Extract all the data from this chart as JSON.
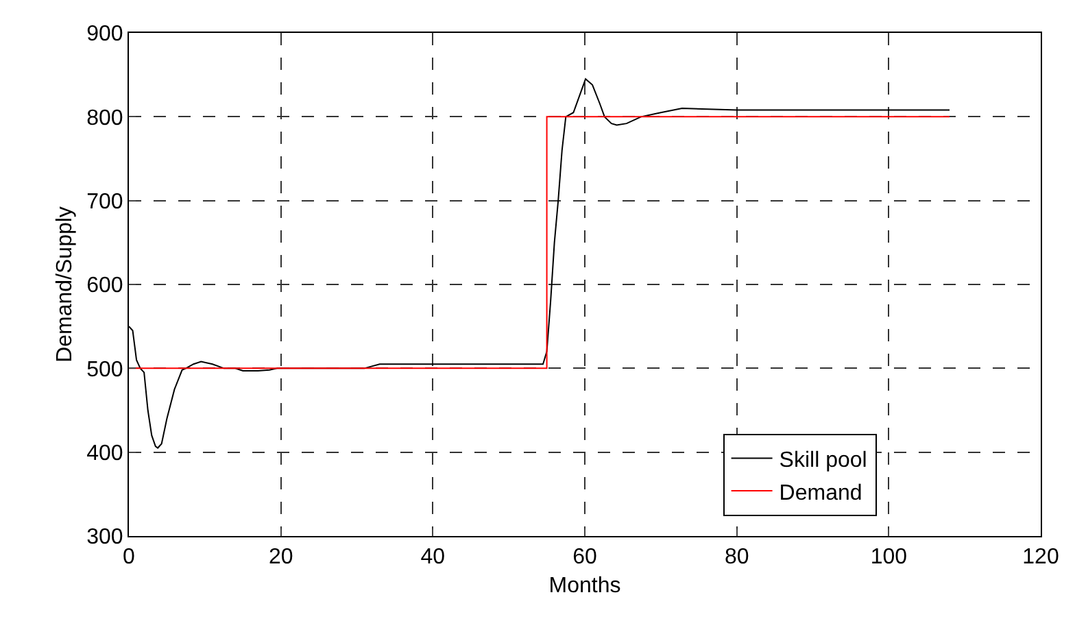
{
  "chart_data": {
    "type": "line",
    "xlabel": "Months",
    "ylabel": "Demand/Supply",
    "series": [
      {
        "name": "Skill pool",
        "color": "#000000",
        "x": [
          0,
          0.5,
          1,
          1.5,
          2,
          2.5,
          3,
          3.5,
          3.8,
          4.3,
          5,
          6,
          7,
          7.5,
          8.5,
          9.5,
          11,
          12.5,
          14,
          15,
          17,
          18.5,
          19.5,
          31,
          33,
          40,
          50,
          54.5,
          55,
          55.5,
          56,
          56.5,
          57,
          57.5,
          58.5,
          59.5,
          60.1,
          61,
          62,
          62.6,
          63.5,
          64.2,
          65.5,
          67.4,
          70,
          72.8,
          80,
          90,
          100,
          108
        ],
        "values": [
          550,
          545,
          510,
          500,
          495,
          450,
          420,
          407,
          405,
          410,
          440,
          475,
          498,
          500,
          505,
          508,
          505,
          500,
          500,
          497,
          497,
          498,
          500,
          500,
          505,
          505,
          505,
          505,
          520,
          580,
          650,
          700,
          760,
          800,
          805,
          830,
          845,
          838,
          815,
          800,
          792,
          790,
          792,
          800,
          805,
          810,
          808,
          808,
          808,
          808
        ]
      },
      {
        "name": "Demand",
        "color": "#ff0000",
        "type": "step",
        "x": [
          0,
          55,
          108
        ],
        "values": [
          500,
          800,
          800
        ]
      }
    ],
    "xlim": [
      0,
      120
    ],
    "xticks": [
      0,
      20,
      40,
      60,
      80,
      100,
      120
    ],
    "ylim": [
      300,
      900
    ],
    "yticks": [
      300,
      400,
      500,
      600,
      700,
      800,
      900
    ],
    "grid": true,
    "legend": "bottom right",
    "line_style": "solid",
    "marker": "none"
  }
}
